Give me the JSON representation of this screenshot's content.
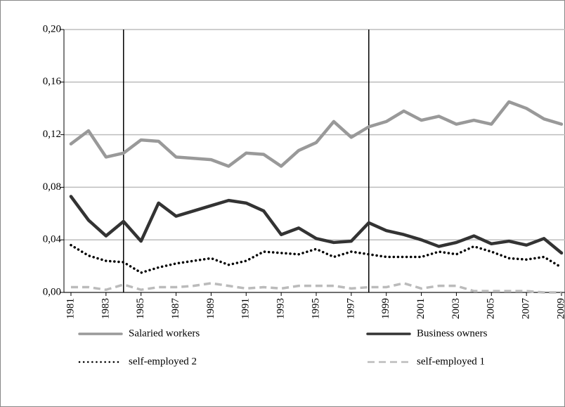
{
  "chart_data": {
    "type": "line",
    "x": [
      1981,
      1982,
      1983,
      1984,
      1985,
      1986,
      1987,
      1988,
      1989,
      1990,
      1991,
      1992,
      1993,
      1994,
      1995,
      1996,
      1997,
      1998,
      1999,
      2000,
      2001,
      2002,
      2003,
      2004,
      2005,
      2006,
      2007,
      2008,
      2009
    ],
    "series": [
      {
        "name": "Salaried workers",
        "color": "#999999",
        "style": "solid",
        "values": [
          0.113,
          0.123,
          0.103,
          0.106,
          0.116,
          0.115,
          0.103,
          0.102,
          0.101,
          0.096,
          0.106,
          0.105,
          0.096,
          0.108,
          0.114,
          0.13,
          0.118,
          0.126,
          0.13,
          0.138,
          0.131,
          0.134,
          0.128,
          0.131,
          0.128,
          0.145,
          0.14,
          0.132,
          0.128
        ]
      },
      {
        "name": "Business owners",
        "color": "#333333",
        "style": "solid",
        "values": [
          0.073,
          0.055,
          0.043,
          0.054,
          0.039,
          0.068,
          0.058,
          0.062,
          0.066,
          0.07,
          0.068,
          0.062,
          0.044,
          0.049,
          0.041,
          0.038,
          0.039,
          0.053,
          0.047,
          0.044,
          0.04,
          0.035,
          0.038,
          0.043,
          0.037,
          0.039,
          0.036,
          0.041,
          0.03
        ]
      },
      {
        "name": "self-employed  2",
        "color": "#000000",
        "style": "dotted",
        "values": [
          0.036,
          0.028,
          0.024,
          0.023,
          0.015,
          0.019,
          0.022,
          0.024,
          0.026,
          0.021,
          0.024,
          0.031,
          0.03,
          0.029,
          0.033,
          0.027,
          0.031,
          0.029,
          0.027,
          0.027,
          0.027,
          0.031,
          0.029,
          0.035,
          0.031,
          0.026,
          0.025,
          0.027,
          0.019
        ]
      },
      {
        "name": "self-employed  1",
        "color": "#bbbbbb",
        "style": "dashed",
        "values": [
          0.004,
          0.004,
          0.002,
          0.006,
          0.002,
          0.004,
          0.004,
          0.005,
          0.007,
          0.005,
          0.003,
          0.004,
          0.003,
          0.005,
          0.005,
          0.005,
          0.003,
          0.004,
          0.004,
          0.007,
          0.003,
          0.005,
          0.005,
          0.001,
          0.001,
          0.001,
          0.001,
          0.0,
          0.0
        ]
      }
    ],
    "xlim": [
      1980.6,
      2009.2
    ],
    "xticks": [
      1981,
      1983,
      1985,
      1987,
      1989,
      1991,
      1993,
      1995,
      1997,
      1999,
      2001,
      2003,
      2005,
      2007,
      2009
    ],
    "ylim": [
      0,
      0.2
    ],
    "yticks": [
      {
        "value": 0,
        "label": "0,00"
      },
      {
        "value": 0.04,
        "label": "0,04"
      },
      {
        "value": 0.08,
        "label": "0,08"
      },
      {
        "value": 0.12,
        "label": "0,12"
      },
      {
        "value": 0.16,
        "label": "0,16"
      },
      {
        "value": 0.2,
        "label": "0,20"
      }
    ],
    "vlines": [
      1984,
      1998
    ],
    "grid": true
  }
}
